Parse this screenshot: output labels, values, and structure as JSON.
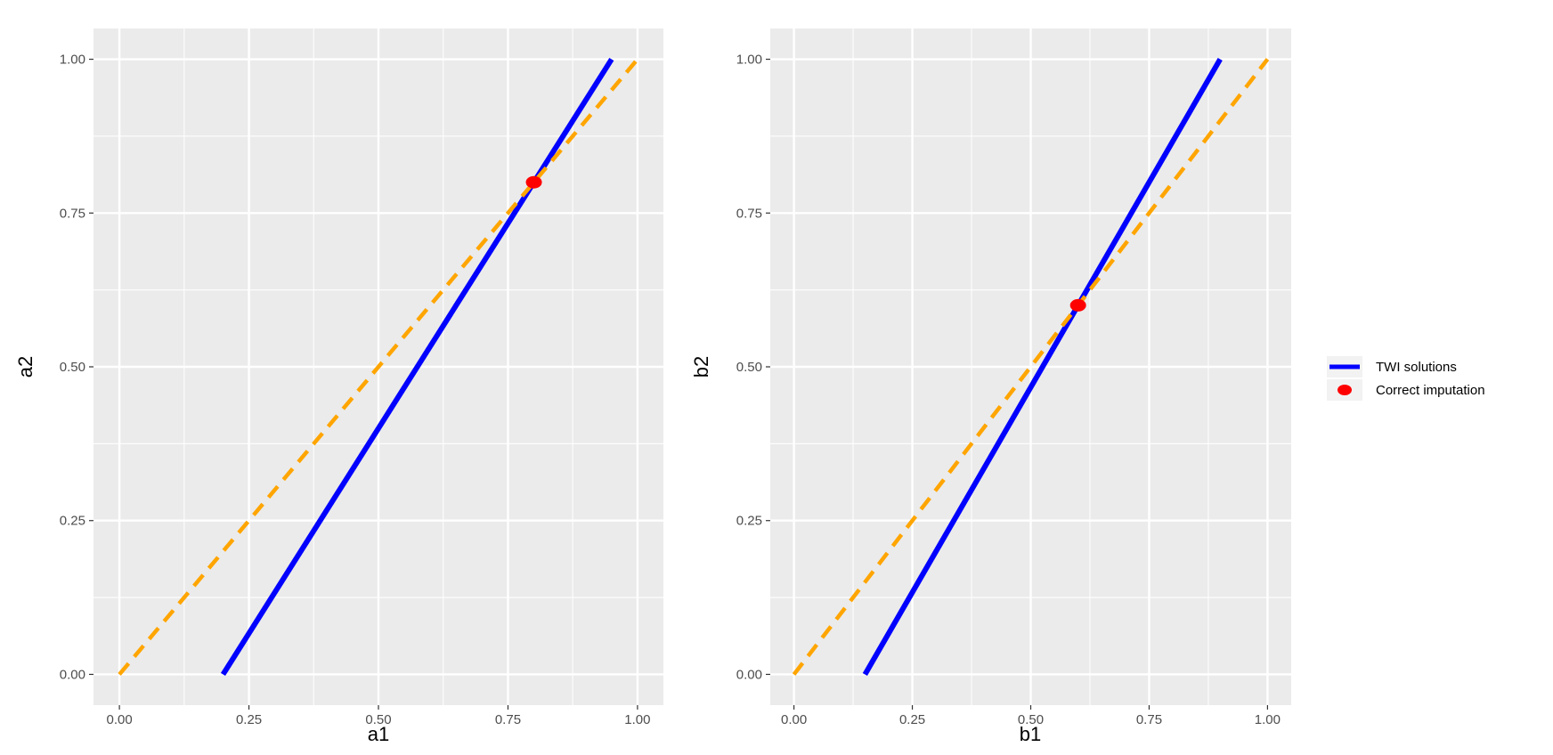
{
  "chart_data": [
    {
      "type": "line",
      "xlabel": "a1",
      "ylabel": "a2",
      "xlim": [
        -0.05,
        1.05
      ],
      "ylim": [
        -0.05,
        1.05
      ],
      "xticks": [
        "0.00",
        "0.25",
        "0.50",
        "0.75",
        "1.00"
      ],
      "yticks": [
        "0.00",
        "0.25",
        "0.50",
        "0.75",
        "1.00"
      ],
      "grid": true,
      "series": [
        {
          "name": "TWI solutions",
          "style": "solid",
          "color": "#0000ff",
          "x": [
            0.2,
            0.95
          ],
          "y": [
            0.0,
            1.0
          ]
        },
        {
          "style": "dashed",
          "color": "#ffa500",
          "x": [
            0.0,
            1.0
          ],
          "y": [
            0.0,
            1.0
          ]
        },
        {
          "name": "Correct imputation",
          "style": "point",
          "color": "#ff0000",
          "x": [
            0.8
          ],
          "y": [
            0.8
          ]
        }
      ]
    },
    {
      "type": "line",
      "xlabel": "b1",
      "ylabel": "b2",
      "xlim": [
        -0.05,
        1.05
      ],
      "ylim": [
        -0.05,
        1.05
      ],
      "xticks": [
        "0.00",
        "0.25",
        "0.50",
        "0.75",
        "1.00"
      ],
      "yticks": [
        "0.00",
        "0.25",
        "0.50",
        "0.75",
        "1.00"
      ],
      "grid": true,
      "series": [
        {
          "name": "TWI solutions",
          "style": "solid",
          "color": "#0000ff",
          "x": [
            0.15,
            0.9
          ],
          "y": [
            0.0,
            1.0
          ]
        },
        {
          "style": "dashed",
          "color": "#ffa500",
          "x": [
            0.0,
            1.0
          ],
          "y": [
            0.0,
            1.0
          ]
        },
        {
          "name": "Correct imputation",
          "style": "point",
          "color": "#ff0000",
          "x": [
            0.6
          ],
          "y": [
            0.6
          ]
        }
      ]
    }
  ],
  "legend": {
    "placement": "right",
    "items": [
      {
        "label": "TWI solutions",
        "kind": "line",
        "color": "#0000ff"
      },
      {
        "label": "Correct imputation",
        "kind": "point",
        "color": "#ff0000"
      }
    ]
  },
  "colors": {
    "panel_bg": "#ebebeb",
    "grid": "#ffffff"
  }
}
